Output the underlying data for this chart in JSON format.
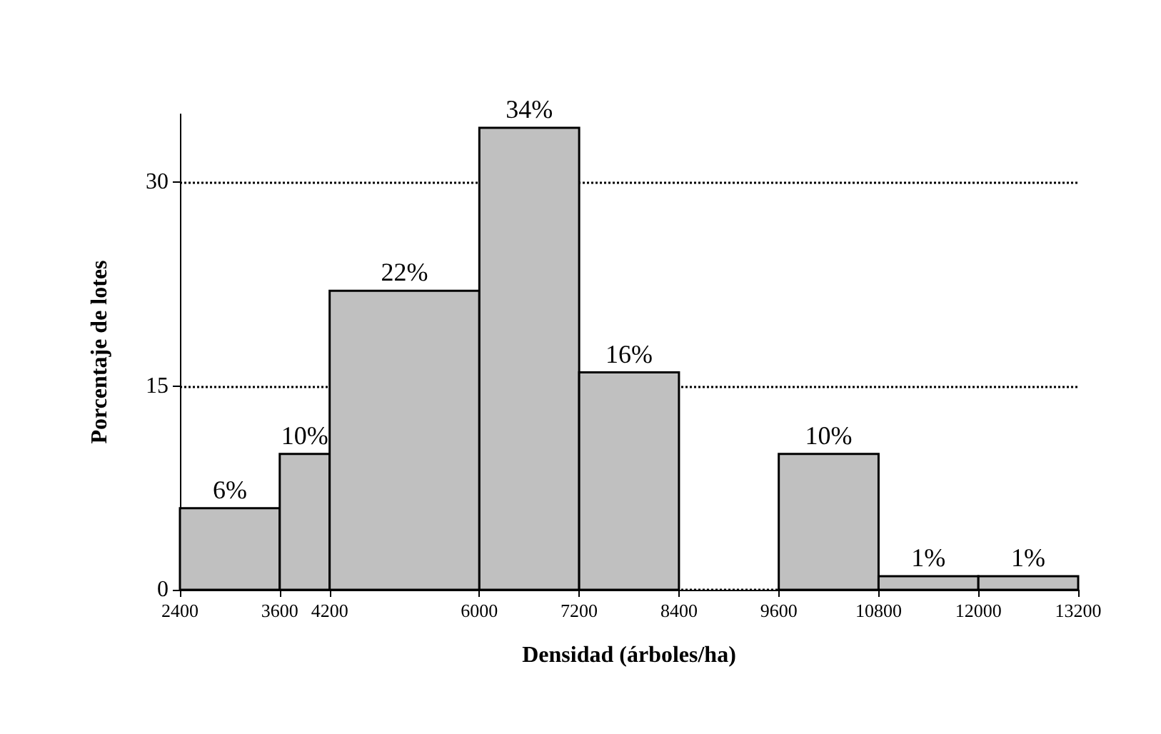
{
  "chart_data": {
    "type": "histogram",
    "bins": [
      2400,
      3600,
      4200,
      6000,
      7200,
      8400,
      9600,
      10800,
      12000,
      13200
    ],
    "values": [
      6,
      10,
      22,
      34,
      16,
      0,
      10,
      1,
      1
    ],
    "value_labels": [
      "6%",
      "10%",
      "22%",
      "34%",
      "16%",
      null,
      "10%",
      "1%",
      "1%"
    ],
    "color": "#c0c0c0",
    "xlabel": "Densidad (árboles/ha)",
    "ylabel": "Porcentaje de lotes",
    "xlim": [
      2400,
      13200
    ],
    "xticks": [
      2400,
      3600,
      4200,
      6000,
      7200,
      8400,
      9600,
      10800,
      12000,
      13200
    ],
    "ylim": [
      0,
      35
    ],
    "yticks": [
      0,
      15,
      30
    ],
    "grid": "y"
  }
}
